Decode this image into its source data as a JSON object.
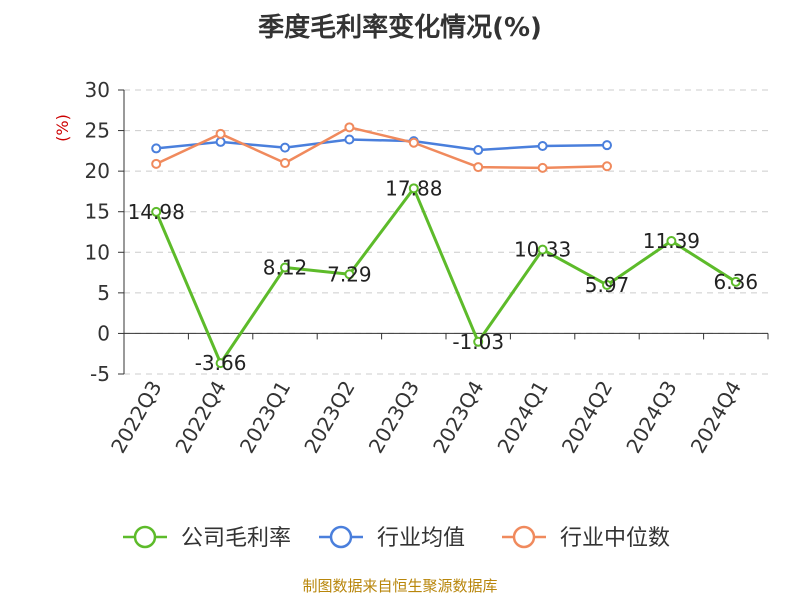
{
  "chart_data": {
    "type": "line",
    "title": "季度毛利率变化情况(%)",
    "unit": "(%)",
    "categories": [
      "2022Q3",
      "2022Q4",
      "2023Q1",
      "2023Q2",
      "2023Q3",
      "2023Q4",
      "2024Q1",
      "2024Q2",
      "2024Q3",
      "2024Q4"
    ],
    "ylim": [
      -5,
      30
    ],
    "yticks": [
      -5,
      0,
      5,
      10,
      15,
      20,
      25,
      30
    ],
    "grid": true,
    "legend_position": "bottom",
    "series": [
      {
        "name": "公司毛利率",
        "color": "#5dbb2a",
        "values": [
          14.98,
          -3.66,
          8.12,
          7.29,
          17.88,
          -1.03,
          10.33,
          5.97,
          11.39,
          6.36
        ],
        "labels": [
          "14.98",
          "-3.66",
          "8.12",
          "7.29",
          "17.88",
          "-1.03",
          "10.33",
          "5.97",
          "11.39",
          "6.36"
        ]
      },
      {
        "name": "行业均值",
        "color": "#4a7fdc",
        "values": [
          22.8,
          23.6,
          22.9,
          23.9,
          23.7,
          22.6,
          23.1,
          23.2,
          null,
          null
        ]
      },
      {
        "name": "行业中位数",
        "color": "#f08a5d",
        "values": [
          20.9,
          24.6,
          21.0,
          25.4,
          23.5,
          20.5,
          20.4,
          20.6,
          null,
          null
        ]
      }
    ]
  },
  "source": "制图数据来自恒生聚源数据库"
}
